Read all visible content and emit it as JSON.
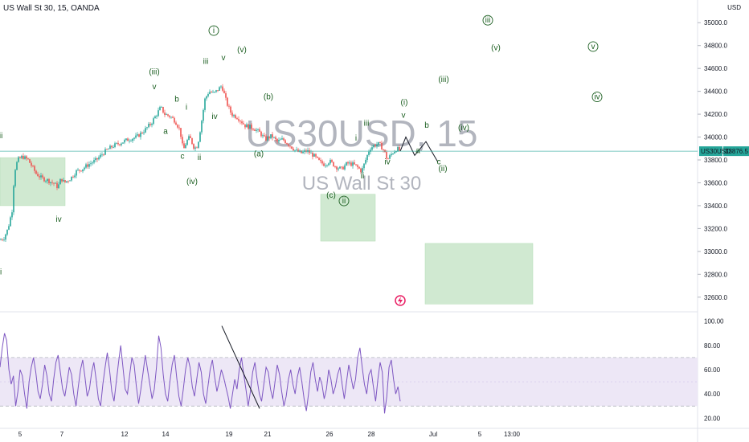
{
  "header": {
    "symbol_title": "US Wall St 30, 15, OANDA",
    "currency": "USD"
  },
  "watermark": {
    "ticker": "US30USD, 15",
    "name": "US Wall St 30"
  },
  "price_badge": {
    "ticker": "US30USD",
    "price": "33876.5"
  },
  "colors": {
    "up": "#26a69a",
    "down": "#ef5350",
    "rsi": "#7e57c2",
    "rsi_band": "#ede7f6",
    "zone": "#c8e6c9",
    "wave": "#1b5e20",
    "price_line": "#26a69a"
  },
  "chart_data": [
    {
      "type": "candlestick",
      "title": "US Wall St 30, 15, OANDA",
      "ylabel": "USD",
      "ylim": [
        32500,
        35100
      ],
      "y_ticks": [
        "35000.0",
        "34800.0",
        "34600.0",
        "34400.0",
        "34200.0",
        "34000.0",
        "33800.0",
        "33600.0",
        "33400.0",
        "33200.0",
        "33000.0",
        "32800.0",
        "32600.0"
      ],
      "x_ticks": [
        "5",
        "7",
        "12",
        "14",
        "19",
        "21",
        "26",
        "28",
        "Jul",
        "5",
        "13:00"
      ],
      "last_price": 33876.5,
      "path": [
        [
          0,
          33100
        ],
        [
          5,
          33120
        ],
        [
          10,
          33200
        ],
        [
          15,
          33360
        ],
        [
          18,
          33700
        ],
        [
          22,
          33800
        ],
        [
          28,
          33830
        ],
        [
          35,
          33800
        ],
        [
          40,
          33740
        ],
        [
          45,
          33680
        ],
        [
          52,
          33640
        ],
        [
          60,
          33620
        ],
        [
          68,
          33590
        ],
        [
          72,
          33560
        ],
        [
          76,
          33640
        ],
        [
          80,
          33600
        ],
        [
          88,
          33640
        ],
        [
          95,
          33700
        ],
        [
          102,
          33720
        ],
        [
          110,
          33760
        ],
        [
          120,
          33800
        ],
        [
          130,
          33870
        ],
        [
          140,
          33920
        ],
        [
          150,
          33950
        ],
        [
          160,
          33980
        ],
        [
          170,
          34000
        ],
        [
          180,
          34060
        ],
        [
          188,
          34120
        ],
        [
          195,
          34200
        ],
        [
          200,
          34260
        ],
        [
          205,
          34200
        ],
        [
          212,
          34180
        ],
        [
          218,
          34140
        ],
        [
          224,
          34060
        ],
        [
          228,
          33880
        ],
        [
          232,
          33960
        ],
        [
          236,
          34000
        ],
        [
          242,
          33900
        ],
        [
          246,
          33930
        ],
        [
          250,
          34100
        ],
        [
          255,
          34330
        ],
        [
          260,
          34400
        ],
        [
          266,
          34380
        ],
        [
          272,
          34420
        ],
        [
          276,
          34450
        ],
        [
          282,
          34300
        ],
        [
          288,
          34200
        ],
        [
          296,
          34170
        ],
        [
          305,
          34100
        ],
        [
          315,
          34080
        ],
        [
          323,
          34040
        ],
        [
          330,
          33980
        ],
        [
          338,
          34010
        ],
        [
          345,
          33960
        ],
        [
          352,
          33980
        ],
        [
          360,
          33930
        ],
        [
          368,
          33880
        ],
        [
          375,
          33860
        ],
        [
          382,
          33880
        ],
        [
          390,
          33840
        ],
        [
          398,
          33780
        ],
        [
          404,
          33760
        ],
        [
          410,
          33790
        ],
        [
          418,
          33740
        ],
        [
          425,
          33720
        ],
        [
          432,
          33770
        ],
        [
          440,
          33760
        ],
        [
          446,
          33730
        ],
        [
          450,
          33700
        ],
        [
          455,
          33800
        ],
        [
          460,
          33900
        ],
        [
          466,
          33930
        ],
        [
          472,
          33940
        ],
        [
          478,
          33880
        ],
        [
          482,
          33800
        ],
        [
          488,
          33860
        ],
        [
          494,
          33900
        ],
        [
          498,
          33876
        ]
      ],
      "projection": [
        [
          498,
          33876
        ],
        [
          505,
          34000
        ],
        [
          516,
          33840
        ],
        [
          530,
          33960
        ],
        [
          545,
          33780
        ]
      ]
    },
    {
      "type": "line",
      "title": "RSI",
      "ylim": [
        15,
        105
      ],
      "y_ticks": [
        "100.00",
        "80.00",
        "60.00",
        "40.00",
        "20.00"
      ],
      "band": [
        30,
        70
      ],
      "values": [
        62,
        78,
        90,
        84,
        60,
        48,
        55,
        30,
        42,
        60,
        55,
        40,
        28,
        50,
        62,
        70,
        58,
        42,
        36,
        48,
        64,
        55,
        40,
        34,
        52,
        66,
        72,
        58,
        44,
        38,
        50,
        62,
        56,
        40,
        30,
        46,
        60,
        68,
        54,
        38,
        44,
        58,
        66,
        52,
        36,
        30,
        48,
        62,
        74,
        60,
        42,
        34,
        50,
        66,
        80,
        62,
        44,
        40,
        56,
        70,
        64,
        46,
        32,
        44,
        58,
        72,
        60,
        48,
        36,
        44,
        62,
        88,
        78,
        56,
        40,
        34,
        50,
        64,
        72,
        54,
        38,
        30,
        44,
        60,
        70,
        62,
        46,
        38,
        52,
        66,
        58,
        40,
        32,
        46,
        60,
        68,
        54,
        42,
        50,
        60,
        54,
        46,
        38,
        28,
        40,
        52,
        44,
        60,
        70,
        56,
        44,
        30,
        42,
        58,
        66,
        52,
        40,
        34,
        48,
        62,
        58,
        44,
        36,
        50,
        64,
        56,
        42,
        30,
        38,
        52,
        60,
        48,
        40,
        54,
        62,
        50,
        36,
        26,
        40,
        58,
        66,
        52,
        42,
        54,
        48,
        36,
        44,
        60,
        52,
        40,
        46,
        56,
        62,
        48,
        36,
        50,
        64,
        54,
        44,
        52,
        70,
        78,
        62,
        48,
        40,
        56,
        60,
        46,
        34,
        52,
        66,
        58,
        24,
        38,
        62,
        68,
        52,
        40,
        46,
        34
      ]
    }
  ],
  "wave_labels": [
    {
      "text": "iii",
      "circled": false,
      "dx": 0,
      "price": 33990
    },
    {
      "text": "iv",
      "circled": false,
      "dx": 73,
      "price": 33260
    },
    {
      "text": "ii",
      "circled": false,
      "dx": 0,
      "price": 32800
    },
    {
      "text": "(iii)",
      "circled": false,
      "dx": 192,
      "price": 34550
    },
    {
      "text": "v",
      "circled": false,
      "dx": 192,
      "price": 34420
    },
    {
      "text": "b",
      "circled": false,
      "dx": 220,
      "price": 34310
    },
    {
      "text": "i",
      "circled": false,
      "dx": 232,
      "price": 34240
    },
    {
      "text": "a",
      "circled": false,
      "dx": 206,
      "price": 34030
    },
    {
      "text": "c",
      "circled": false,
      "dx": 227,
      "price": 33810
    },
    {
      "text": "ii",
      "circled": false,
      "dx": 248,
      "price": 33800
    },
    {
      "text": "(iv)",
      "circled": false,
      "dx": 239,
      "price": 33590
    },
    {
      "text": "i",
      "circled": true,
      "dx": 266,
      "price": 34910
    },
    {
      "text": "iii",
      "circled": false,
      "dx": 256,
      "price": 34640
    },
    {
      "text": "v",
      "circled": false,
      "dx": 278,
      "price": 34670
    },
    {
      "text": "(v)",
      "circled": false,
      "dx": 301,
      "price": 34740
    },
    {
      "text": "iv",
      "circled": false,
      "dx": 267,
      "price": 34160
    },
    {
      "text": "(b)",
      "circled": false,
      "dx": 334,
      "price": 34330
    },
    {
      "text": "(a)",
      "circled": false,
      "dx": 322,
      "price": 33830
    },
    {
      "text": "iii",
      "circled": false,
      "dx": 456,
      "price": 34100
    },
    {
      "text": "i",
      "circled": false,
      "dx": 443,
      "price": 33970
    },
    {
      "text": "iv",
      "circled": false,
      "dx": 482,
      "price": 33760
    },
    {
      "text": "ii",
      "circled": false,
      "dx": 451,
      "price": 33640
    },
    {
      "text": "(c)",
      "circled": false,
      "dx": 412,
      "price": 33470
    },
    {
      "text": "ii",
      "circled": true,
      "dx": 428,
      "price": 33420
    },
    {
      "text": "(i)",
      "circled": false,
      "dx": 503,
      "price": 34280
    },
    {
      "text": "v",
      "circled": false,
      "dx": 502,
      "price": 34170
    },
    {
      "text": "b",
      "circled": false,
      "dx": 531,
      "price": 34080
    },
    {
      "text": "a",
      "circled": false,
      "dx": 520,
      "price": 33860
    },
    {
      "text": "c",
      "circled": false,
      "dx": 546,
      "price": 33760
    },
    {
      "text": "(ii)",
      "circled": false,
      "dx": 551,
      "price": 33700
    },
    {
      "text": "(iv)",
      "circled": false,
      "dx": 577,
      "price": 34060
    },
    {
      "text": "(iii)",
      "circled": false,
      "dx": 552,
      "price": 34480
    },
    {
      "text": "iii",
      "circled": true,
      "dx": 607,
      "price": 35000
    },
    {
      "text": "(v)",
      "circled": false,
      "dx": 617,
      "price": 34760
    },
    {
      "text": "v",
      "circled": true,
      "dx": 738,
      "price": 34770
    },
    {
      "text": "iv",
      "circled": true,
      "dx": 743,
      "price": 34330
    }
  ],
  "zones": [
    {
      "dx0": 0,
      "dx1": 81,
      "price_top": 33820,
      "price_bottom": 33400
    },
    {
      "dx0": 399,
      "dx1": 467,
      "price_top": 33500,
      "price_bottom": 33090
    },
    {
      "dx0": 529,
      "dx1": 663,
      "price_top": 33070,
      "price_bottom": 32540
    }
  ],
  "rsi_trendline": [
    [
      276,
      96
    ],
    [
      323,
      28
    ]
  ]
}
